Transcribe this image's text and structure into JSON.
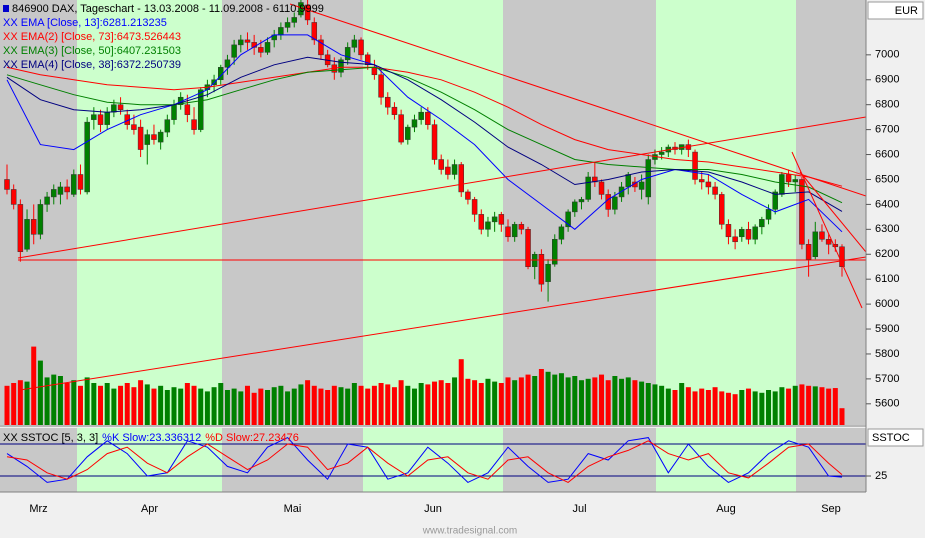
{
  "chart_data": [
    {
      "type": "candlestick",
      "title": "846900  DAX, Tageschart - 13.03.2008 - 11.09.2008 - 6110.9999",
      "currency": "EUR",
      "footer": "www.tradesignal.com",
      "months": [
        "Mrz",
        "Apr",
        "Mai",
        "Jun",
        "Jul",
        "Aug",
        "Sep"
      ],
      "ylim": [
        5515,
        7220
      ],
      "yticks": [
        5600,
        5700,
        5800,
        5900,
        6000,
        6100,
        6200,
        6300,
        6400,
        6500,
        6600,
        6700,
        6800,
        6900,
        7000
      ],
      "up_color": "#008000",
      "down_color": "#ff0000",
      "ohlc": [
        [
          6500,
          6560,
          6440,
          6460
        ],
        [
          6460,
          6480,
          6380,
          6400
        ],
        [
          6400,
          6420,
          6170,
          6210
        ],
        [
          6220,
          6380,
          6210,
          6340
        ],
        [
          6340,
          6400,
          6240,
          6280
        ],
        [
          6280,
          6420,
          6260,
          6400
        ],
        [
          6400,
          6450,
          6370,
          6430
        ],
        [
          6430,
          6480,
          6400,
          6460
        ],
        [
          6440,
          6490,
          6400,
          6470
        ],
        [
          6470,
          6500,
          6420,
          6450
        ],
        [
          6440,
          6540,
          6430,
          6520
        ],
        [
          6520,
          6560,
          6440,
          6460
        ],
        [
          6450,
          6750,
          6440,
          6730
        ],
        [
          6740,
          6790,
          6700,
          6760
        ],
        [
          6760,
          6780,
          6690,
          6720
        ],
        [
          6720,
          6790,
          6700,
          6770
        ],
        [
          6770,
          6820,
          6750,
          6800
        ],
        [
          6800,
          6830,
          6760,
          6780
        ],
        [
          6760,
          6780,
          6700,
          6720
        ],
        [
          6720,
          6760,
          6680,
          6700
        ],
        [
          6710,
          6740,
          6590,
          6620
        ],
        [
          6640,
          6700,
          6560,
          6680
        ],
        [
          6680,
          6720,
          6640,
          6660
        ],
        [
          6650,
          6700,
          6620,
          6690
        ],
        [
          6690,
          6760,
          6670,
          6740
        ],
        [
          6740,
          6820,
          6720,
          6800
        ],
        [
          6800,
          6850,
          6780,
          6830
        ],
        [
          6800,
          6840,
          6730,
          6760
        ],
        [
          6740,
          6790,
          6680,
          6700
        ],
        [
          6700,
          6870,
          6690,
          6860
        ],
        [
          6860,
          6900,
          6830,
          6880
        ],
        [
          6880,
          6920,
          6850,
          6900
        ],
        [
          6900,
          6960,
          6880,
          6950
        ],
        [
          6950,
          7000,
          6920,
          6980
        ],
        [
          6990,
          7060,
          6960,
          7040
        ],
        [
          7040,
          7080,
          7010,
          7060
        ],
        [
          7060,
          7090,
          7020,
          7050
        ],
        [
          7050,
          7080,
          7000,
          7030
        ],
        [
          7030,
          7060,
          6990,
          7010
        ],
        [
          7010,
          7070,
          7000,
          7050
        ],
        [
          7060,
          7100,
          7030,
          7080
        ],
        [
          7080,
          7130,
          7060,
          7110
        ],
        [
          7110,
          7150,
          7090,
          7130
        ],
        [
          7130,
          7170,
          7110,
          7150
        ],
        [
          7160,
          7230,
          7150,
          7210
        ],
        [
          7200,
          7220,
          7120,
          7140
        ],
        [
          7130,
          7150,
          7040,
          7060
        ],
        [
          7060,
          7080,
          6980,
          7000
        ],
        [
          7000,
          7020,
          6950,
          6960
        ],
        [
          6960,
          6990,
          6900,
          6930
        ],
        [
          6930,
          6990,
          6910,
          6980
        ],
        [
          6980,
          7050,
          6960,
          7030
        ],
        [
          7030,
          7080,
          7010,
          7060
        ],
        [
          7060,
          7070,
          6980,
          7000
        ],
        [
          7000,
          7010,
          6940,
          6960
        ],
        [
          6950,
          6980,
          6900,
          6920
        ],
        [
          6920,
          6940,
          6800,
          6830
        ],
        [
          6830,
          6850,
          6760,
          6790
        ],
        [
          6790,
          6810,
          6740,
          6760
        ],
        [
          6760,
          6780,
          6640,
          6650
        ],
        [
          6660,
          6720,
          6640,
          6710
        ],
        [
          6710,
          6760,
          6690,
          6740
        ],
        [
          6740,
          6790,
          6720,
          6770
        ],
        [
          6770,
          6790,
          6700,
          6720
        ],
        [
          6720,
          6740,
          6560,
          6580
        ],
        [
          6580,
          6600,
          6520,
          6540
        ],
        [
          6550,
          6580,
          6500,
          6520
        ],
        [
          6520,
          6580,
          6500,
          6560
        ],
        [
          6560,
          6570,
          6430,
          6450
        ],
        [
          6450,
          6460,
          6400,
          6420
        ],
        [
          6420,
          6430,
          6330,
          6360
        ],
        [
          6360,
          6380,
          6280,
          6300
        ],
        [
          6300,
          6350,
          6270,
          6330
        ],
        [
          6330,
          6370,
          6290,
          6350
        ],
        [
          6360,
          6370,
          6290,
          6320
        ],
        [
          6310,
          6340,
          6250,
          6270
        ],
        [
          6270,
          6330,
          6250,
          6320
        ],
        [
          6320,
          6330,
          6280,
          6300
        ],
        [
          6300,
          6310,
          6140,
          6150
        ],
        [
          6150,
          6210,
          6100,
          6200
        ],
        [
          6200,
          6220,
          6050,
          6080
        ],
        [
          6090,
          6180,
          6010,
          6160
        ],
        [
          6160,
          6280,
          6150,
          6260
        ],
        [
          6260,
          6320,
          6240,
          6310
        ],
        [
          6310,
          6380,
          6290,
          6370
        ],
        [
          6370,
          6420,
          6350,
          6410
        ],
        [
          6410,
          6430,
          6380,
          6420
        ],
        [
          6420,
          6530,
          6410,
          6510
        ],
        [
          6510,
          6570,
          6470,
          6490
        ],
        [
          6490,
          6500,
          6420,
          6440
        ],
        [
          6440,
          6460,
          6350,
          6380
        ],
        [
          6380,
          6450,
          6360,
          6430
        ],
        [
          6430,
          6490,
          6410,
          6470
        ],
        [
          6470,
          6530,
          6440,
          6520
        ],
        [
          6490,
          6510,
          6450,
          6470
        ],
        [
          6460,
          6520,
          6420,
          6490
        ],
        [
          6430,
          6600,
          6400,
          6580
        ],
        [
          6580,
          6620,
          6560,
          6600
        ],
        [
          6600,
          6630,
          6580,
          6610
        ],
        [
          6610,
          6640,
          6590,
          6630
        ],
        [
          6630,
          6650,
          6600,
          6620
        ],
        [
          6620,
          6640,
          6600,
          6640
        ],
        [
          6640,
          6660,
          6590,
          6620
        ],
        [
          6610,
          6620,
          6480,
          6500
        ],
        [
          6500,
          6530,
          6460,
          6490
        ],
        [
          6490,
          6520,
          6440,
          6470
        ],
        [
          6470,
          6490,
          6420,
          6440
        ],
        [
          6440,
          6450,
          6300,
          6320
        ],
        [
          6320,
          6340,
          6240,
          6270
        ],
        [
          6270,
          6300,
          6220,
          6250
        ],
        [
          6270,
          6310,
          6250,
          6300
        ],
        [
          6300,
          6330,
          6240,
          6260
        ],
        [
          6260,
          6320,
          6240,
          6310
        ],
        [
          6310,
          6350,
          6280,
          6340
        ],
        [
          6340,
          6400,
          6320,
          6380
        ],
        [
          6380,
          6460,
          6360,
          6450
        ],
        [
          6440,
          6530,
          6430,
          6520
        ],
        [
          6520,
          6540,
          6470,
          6490
        ],
        [
          6490,
          6520,
          6450,
          6500
        ],
        [
          6500,
          6510,
          6220,
          6240
        ],
        [
          6240,
          6260,
          6110,
          6180
        ],
        [
          6190,
          6330,
          6180,
          6290
        ],
        [
          6290,
          6320,
          6250,
          6260
        ],
        [
          6260,
          6280,
          6200,
          6240
        ],
        [
          6240,
          6260,
          6210,
          6230
        ],
        [
          6230,
          6240,
          6110,
          6150
        ]
      ],
      "volume": [
        140,
        150,
        160,
        155,
        280,
        230,
        170,
        180,
        175,
        150,
        160,
        140,
        170,
        150,
        140,
        150,
        130,
        140,
        150,
        135,
        160,
        145,
        130,
        140,
        125,
        135,
        130,
        150,
        140,
        130,
        120,
        135,
        150,
        125,
        130,
        120,
        140,
        115,
        130,
        125,
        135,
        140,
        120,
        130,
        145,
        160,
        140,
        130,
        125,
        140,
        135,
        130,
        150,
        140,
        130,
        140,
        150,
        145,
        135,
        160,
        140,
        130,
        150,
        145,
        155,
        160,
        150,
        170,
        235,
        165,
        160,
        150,
        165,
        155,
        150,
        170,
        160,
        170,
        180,
        175,
        200,
        190,
        180,
        185,
        170,
        175,
        160,
        165,
        170,
        180,
        160,
        175,
        165,
        170,
        160,
        155,
        150,
        145,
        140,
        130,
        125,
        150,
        135,
        120,
        130,
        125,
        135,
        120,
        115,
        110,
        125,
        130,
        120,
        115,
        125,
        120,
        135,
        130,
        140,
        145,
        140,
        138,
        135,
        130,
        132,
        60
      ],
      "series": [
        {
          "name": "XX EMA [Close, 13]:6281.213235",
          "color": "#0000ff",
          "x": [
            0,
            5,
            10,
            15,
            20,
            25,
            30,
            35,
            40,
            45,
            50,
            55,
            60,
            65,
            70,
            75,
            80,
            85,
            90,
            95,
            100,
            105,
            110,
            115,
            120,
            125
          ],
          "values": [
            6900,
            6640,
            6620,
            6700,
            6760,
            6800,
            6860,
            7000,
            7080,
            7080,
            7000,
            6960,
            6830,
            6740,
            6640,
            6500,
            6400,
            6300,
            6420,
            6500,
            6540,
            6520,
            6440,
            6370,
            6420,
            6290
          ]
        },
        {
          "name": "XX EMA(2) [Close, 73]:6473.526443",
          "color": "#ff0000",
          "x": [
            0,
            5,
            10,
            15,
            20,
            25,
            30,
            35,
            40,
            45,
            50,
            55,
            60,
            65,
            70,
            75,
            80,
            85,
            90,
            95,
            100,
            105,
            110,
            115,
            120,
            125
          ],
          "values": [
            6950,
            6920,
            6900,
            6880,
            6870,
            6860,
            6870,
            6890,
            6910,
            6930,
            6950,
            6950,
            6930,
            6900,
            6850,
            6790,
            6720,
            6660,
            6620,
            6600,
            6580,
            6570,
            6550,
            6530,
            6510,
            6473
          ]
        },
        {
          "name": "XX EMA(3) [Close, 50]:6407.231503",
          "color": "#008000",
          "x": [
            0,
            5,
            10,
            15,
            20,
            25,
            30,
            35,
            40,
            45,
            50,
            55,
            60,
            65,
            70,
            75,
            80,
            85,
            90,
            95,
            100,
            105,
            110,
            115,
            120,
            125
          ],
          "values": [
            6920,
            6880,
            6840,
            6810,
            6800,
            6800,
            6820,
            6860,
            6900,
            6930,
            6940,
            6950,
            6910,
            6850,
            6780,
            6700,
            6640,
            6580,
            6560,
            6550,
            6540,
            6540,
            6520,
            6490,
            6470,
            6407
          ]
        },
        {
          "name": "XX EMA(4) [Close, 38]:6372.250739",
          "color": "#000080",
          "x": [
            0,
            5,
            10,
            15,
            20,
            25,
            30,
            35,
            40,
            45,
            50,
            55,
            60,
            65,
            70,
            75,
            80,
            85,
            90,
            95,
            100,
            105,
            110,
            115,
            120,
            125
          ],
          "values": [
            6910,
            6820,
            6780,
            6770,
            6780,
            6800,
            6840,
            6910,
            6960,
            6990,
            6970,
            6960,
            6900,
            6820,
            6730,
            6630,
            6560,
            6480,
            6500,
            6530,
            6540,
            6530,
            6490,
            6440,
            6450,
            6372
          ]
        }
      ]
    },
    {
      "type": "line",
      "title": "XX SSTOC [5, 3, 3]",
      "label": "SSTOC",
      "ylim": [
        0,
        100
      ],
      "yticks": [
        25
      ],
      "levels": [
        25,
        75
      ],
      "x": [
        0,
        3,
        6,
        9,
        12,
        15,
        18,
        21,
        24,
        27,
        30,
        33,
        36,
        39,
        42,
        45,
        48,
        51,
        54,
        57,
        60,
        63,
        66,
        69,
        72,
        75,
        78,
        81,
        84,
        87,
        90,
        93,
        96,
        99,
        102,
        105,
        108,
        111,
        114,
        117,
        120,
        123,
        125
      ],
      "series": [
        {
          "name": "%K Slow:23.336312",
          "color": "#0000ff",
          "values": [
            60,
            40,
            15,
            20,
            55,
            80,
            60,
            25,
            30,
            80,
            70,
            40,
            30,
            70,
            85,
            50,
            20,
            75,
            70,
            20,
            30,
            70,
            45,
            15,
            30,
            70,
            40,
            15,
            20,
            60,
            50,
            80,
            85,
            30,
            75,
            40,
            15,
            30,
            60,
            80,
            70,
            25,
            23.34
          ]
        },
        {
          "name": "%D Slow:27.23476",
          "color": "#ff0000",
          "values": [
            55,
            50,
            30,
            20,
            35,
            60,
            70,
            45,
            30,
            55,
            75,
            55,
            35,
            50,
            75,
            70,
            35,
            45,
            70,
            45,
            25,
            50,
            55,
            30,
            20,
            50,
            55,
            30,
            15,
            40,
            55,
            65,
            80,
            60,
            50,
            60,
            30,
            22,
            45,
            70,
            75,
            45,
            27.23
          ]
        }
      ]
    }
  ]
}
